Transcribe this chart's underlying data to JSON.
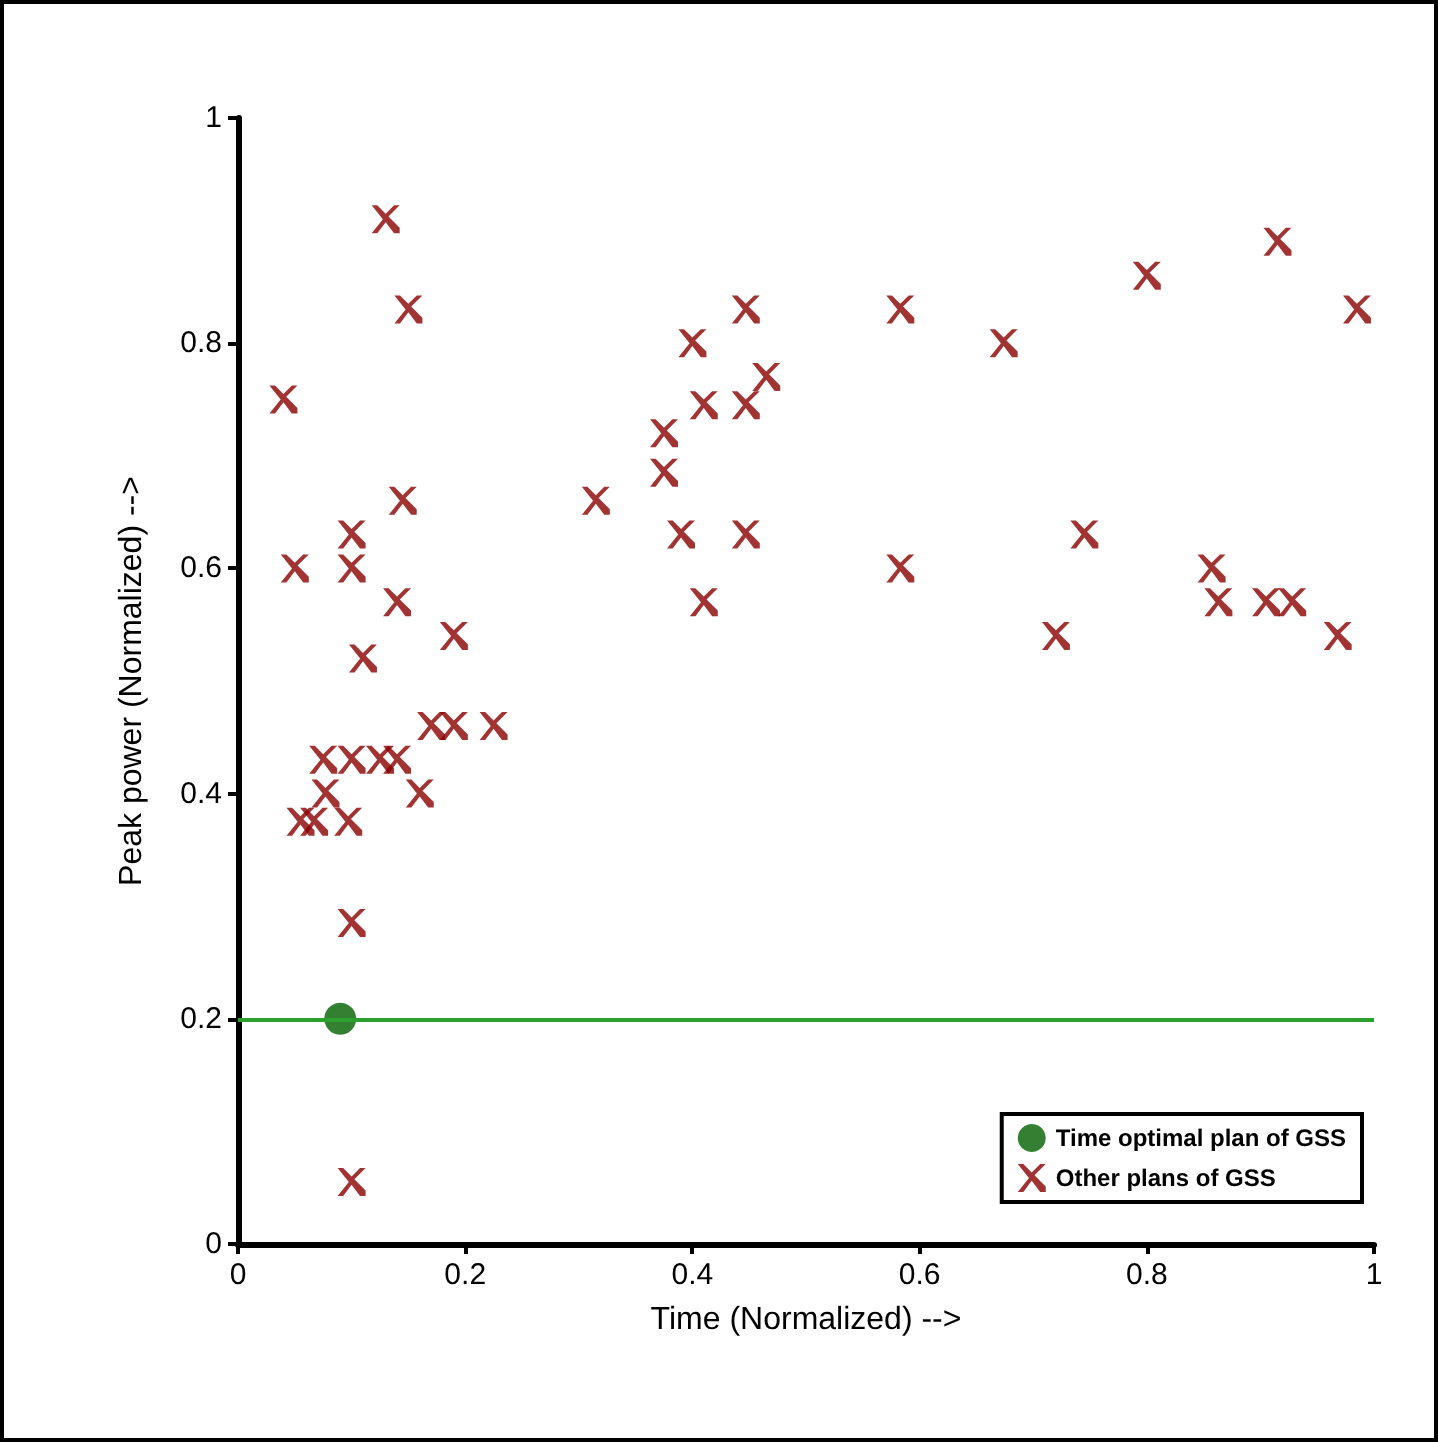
{
  "chart_data": {
    "type": "scatter",
    "xlabel": "Time (Normalized) -->",
    "ylabel": "Peak power (Normalized) -->",
    "xlim": [
      0,
      1
    ],
    "xticks": [
      0,
      0.2,
      0.4,
      0.6,
      0.8,
      1
    ],
    "ylim": [
      0,
      1
    ],
    "yticks": [
      0,
      0.2,
      0.4,
      0.6,
      0.8,
      1
    ],
    "grid": false,
    "legend": "bottom right",
    "ref_lines": [
      {
        "axis": "y",
        "value": 0.2,
        "color": "#2ca02c",
        "line_style": "solid"
      }
    ],
    "series": [
      {
        "name": "Time optimal plan of GSS",
        "color": "#006000",
        "marker": "circle",
        "x": [
          0.09
        ],
        "values": [
          0.2
        ]
      },
      {
        "name": "Other plans of GSS",
        "color": "#8b0000",
        "marker": "cross",
        "x": [
          0.04,
          0.13,
          0.15,
          0.05,
          0.145,
          0.1,
          0.1,
          0.14,
          0.19,
          0.11,
          0.075,
          0.1,
          0.125,
          0.14,
          0.17,
          0.19,
          0.225,
          0.16,
          0.077,
          0.055,
          0.067,
          0.097,
          0.1,
          0.1,
          0.915,
          0.8,
          0.985,
          0.447,
          0.583,
          0.674,
          0.4,
          0.465,
          0.41,
          0.447,
          0.375,
          0.375,
          0.315,
          0.39,
          0.447,
          0.745,
          0.583,
          0.857,
          0.41,
          0.863,
          0.905,
          0.928,
          0.72,
          0.968
        ],
        "values": [
          0.75,
          0.91,
          0.83,
          0.6,
          0.66,
          0.63,
          0.6,
          0.57,
          0.54,
          0.52,
          0.43,
          0.43,
          0.43,
          0.43,
          0.46,
          0.46,
          0.46,
          0.4,
          0.4,
          0.375,
          0.375,
          0.375,
          0.285,
          0.055,
          0.89,
          0.86,
          0.83,
          0.83,
          0.83,
          0.8,
          0.8,
          0.77,
          0.745,
          0.745,
          0.72,
          0.685,
          0.66,
          0.63,
          0.63,
          0.63,
          0.6,
          0.6,
          0.57,
          0.57,
          0.57,
          0.57,
          0.54,
          0.54
        ]
      }
    ]
  }
}
